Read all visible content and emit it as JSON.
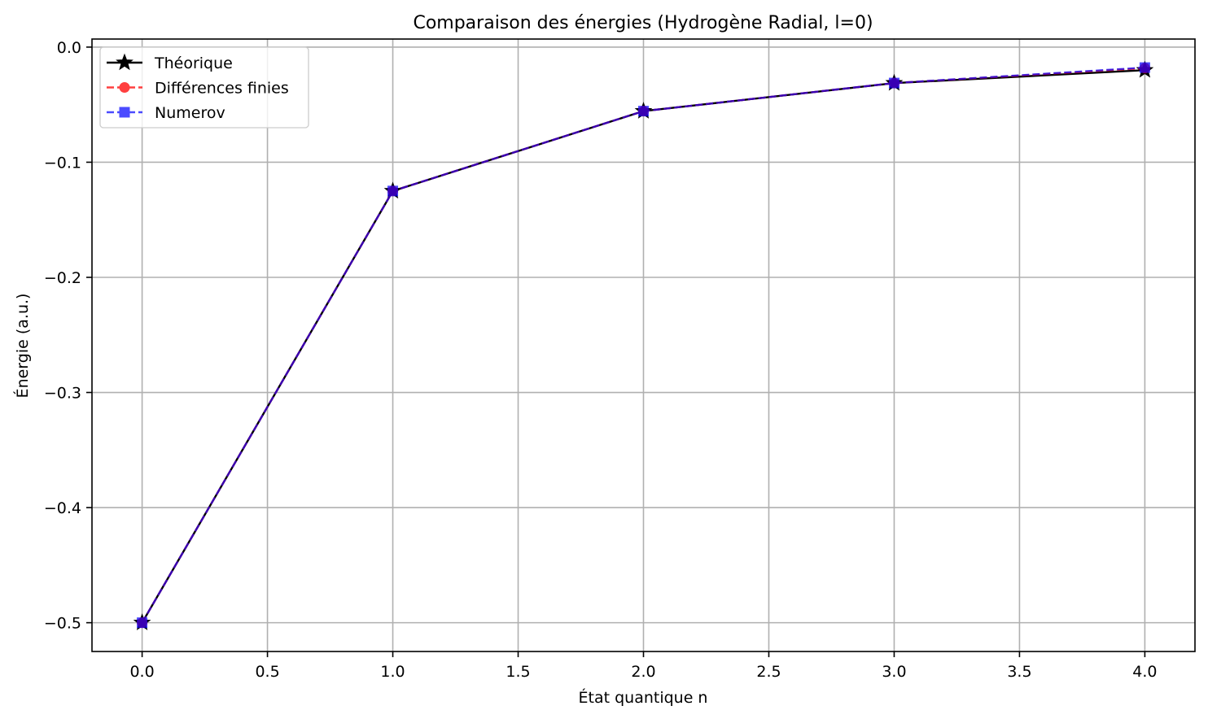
{
  "chart_data": {
    "type": "line",
    "title": "Comparaison des énergies (Hydrogène Radial, l=0)",
    "xlabel": "État quantique n",
    "ylabel": "Énergie (a.u.)",
    "xlim": [
      -0.2,
      4.2
    ],
    "ylim": [
      -0.525,
      0.007
    ],
    "x_ticks": [
      0.0,
      0.5,
      1.0,
      1.5,
      2.0,
      2.5,
      3.0,
      3.5,
      4.0
    ],
    "x_tick_labels": [
      "0.0",
      "0.5",
      "1.0",
      "1.5",
      "2.0",
      "2.5",
      "3.0",
      "3.5",
      "4.0"
    ],
    "y_ticks": [
      0.0,
      -0.1,
      -0.2,
      -0.3,
      -0.4,
      -0.5
    ],
    "y_tick_labels": [
      "0.0",
      "−0.1",
      "−0.2",
      "−0.3",
      "−0.4",
      "−0.5"
    ],
    "grid": true,
    "legend_position": "top-left",
    "x": [
      0,
      1,
      2,
      3,
      4
    ],
    "series": [
      {
        "name": "Théorique",
        "values": [
          -0.5,
          -0.125,
          -0.0556,
          -0.0313,
          -0.02
        ],
        "color": "#000000",
        "linestyle": "solid",
        "marker": "star",
        "alpha": 1.0
      },
      {
        "name": "Différences finies",
        "values": [
          -0.5,
          -0.125,
          -0.0556,
          -0.0312,
          -0.0183
        ],
        "color": "#ff0000",
        "linestyle": "dashed",
        "marker": "circle",
        "alpha": 0.75
      },
      {
        "name": "Numerov",
        "values": [
          -0.5,
          -0.125,
          -0.0556,
          -0.0312,
          -0.0178
        ],
        "color": "#0000ff",
        "linestyle": "dashed",
        "marker": "square",
        "alpha": 0.7
      }
    ]
  }
}
